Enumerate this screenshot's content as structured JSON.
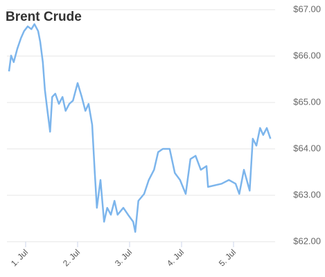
{
  "chart_data": {
    "type": "line",
    "title": "Brent Crude",
    "color": "#7cb5ec",
    "grid": true,
    "x": [
      0.68,
      0.72,
      0.77,
      0.84,
      0.91,
      0.97,
      1.04,
      1.11,
      1.17,
      1.24,
      1.28,
      1.33,
      1.37,
      1.41,
      1.47,
      1.51,
      1.57,
      1.64,
      1.71,
      1.77,
      1.84,
      1.91,
      2.0,
      2.08,
      2.15,
      2.21,
      2.28,
      2.33,
      2.37,
      2.44,
      2.51,
      2.57,
      2.64,
      2.71,
      2.77,
      2.88,
      2.97,
      3.07,
      3.11,
      3.17,
      3.28,
      3.37,
      3.47,
      3.55,
      3.64,
      3.77,
      3.87,
      3.97,
      4.08,
      4.17,
      4.27,
      4.37,
      4.48,
      4.51,
      4.77,
      4.91,
      5.04,
      5.11,
      5.2,
      5.31,
      5.37,
      5.44,
      5.51,
      5.57,
      5.64,
      5.71
    ],
    "values": [
      65.67,
      66.01,
      65.87,
      66.16,
      66.39,
      66.54,
      66.64,
      66.58,
      66.69,
      66.54,
      66.31,
      65.87,
      65.27,
      64.9,
      64.37,
      65.12,
      65.19,
      64.97,
      65.12,
      64.82,
      64.97,
      65.04,
      65.42,
      65.12,
      64.82,
      64.97,
      64.52,
      63.48,
      62.73,
      63.33,
      62.43,
      62.73,
      62.58,
      62.88,
      62.58,
      62.73,
      62.58,
      62.43,
      62.21,
      62.88,
      63.03,
      63.33,
      63.55,
      63.93,
      64.0,
      64.0,
      63.48,
      63.33,
      63.03,
      63.78,
      63.85,
      63.55,
      63.63,
      63.18,
      63.25,
      63.33,
      63.25,
      63.03,
      63.55,
      63.1,
      64.22,
      64.07,
      64.45,
      64.3,
      64.45,
      64.22
    ],
    "xlim": [
      0.64,
      5.8
    ],
    "xticks": [
      {
        "value": 1,
        "label": "1. Jul"
      },
      {
        "value": 2,
        "label": "2. Jul"
      },
      {
        "value": 3,
        "label": "3. Jul"
      },
      {
        "value": 4,
        "label": "4. Jul"
      },
      {
        "value": 5,
        "label": "5. Jul"
      }
    ],
    "ylim": [
      62,
      67
    ],
    "yticks": [
      {
        "value": 62,
        "label": "$62.00"
      },
      {
        "value": 63,
        "label": "$63.00"
      },
      {
        "value": 64,
        "label": "$64.00"
      },
      {
        "value": 65,
        "label": "$65.00"
      },
      {
        "value": 66,
        "label": "$66.00"
      },
      {
        "value": 67,
        "label": "$67.00"
      }
    ]
  }
}
